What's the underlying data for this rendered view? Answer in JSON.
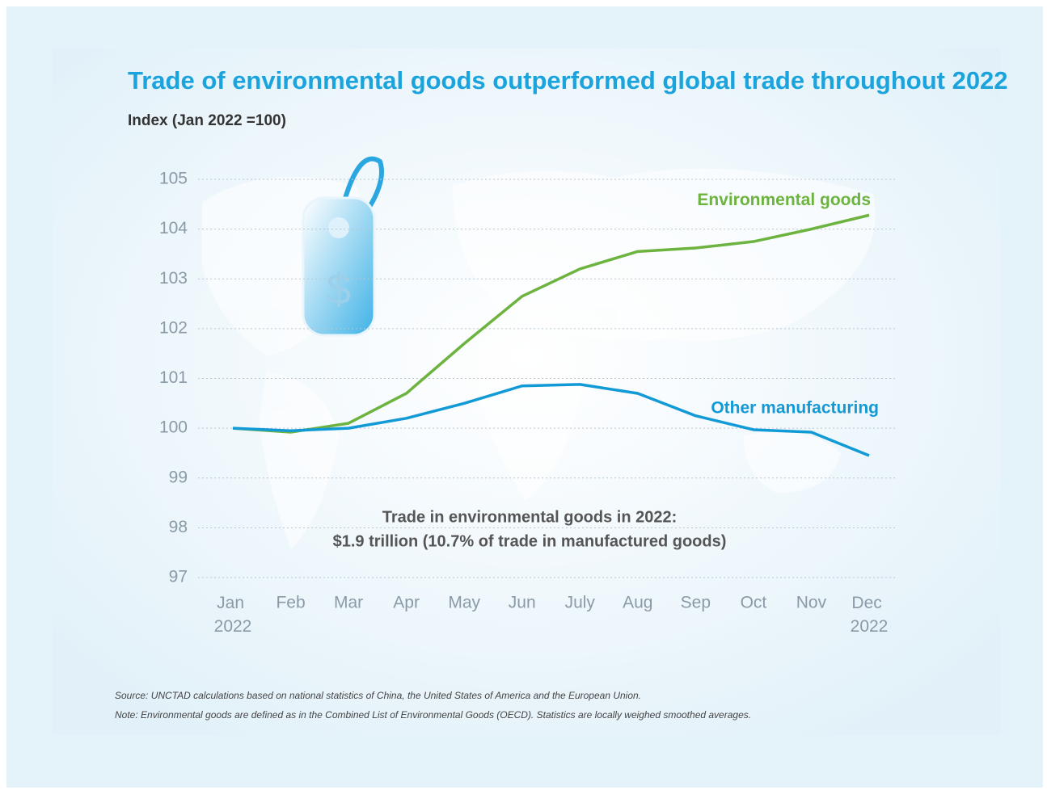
{
  "chart_data": {
    "type": "line",
    "title": "Trade of environmental goods outperformed global trade throughout 2022",
    "y_label": "Index (Jan 2022 =100)",
    "categories": [
      "Jan 2022",
      "Feb",
      "Mar",
      "Apr",
      "May",
      "Jun",
      "July",
      "Aug",
      "Sep",
      "Oct",
      "Nov",
      "Dec 2022"
    ],
    "series": [
      {
        "name": "Environmental goods",
        "color": "#6db33f",
        "values": [
          100,
          99.92,
          100.1,
          100.7,
          101.7,
          102.65,
          103.2,
          103.55,
          103.62,
          103.75,
          104,
          104.28
        ]
      },
      {
        "name": "Other manufacturing",
        "color": "#129ad6",
        "values": [
          100,
          99.95,
          100,
          100.2,
          100.5,
          100.85,
          100.88,
          100.7,
          100.25,
          99.97,
          99.92,
          99.45
        ]
      }
    ],
    "ylim": [
      97,
      105
    ],
    "yticks": [
      97,
      98,
      99,
      100,
      101,
      102,
      103,
      104,
      105
    ],
    "grid": true,
    "annotation": [
      "Trade in environmental goods in 2022:",
      "$1.9 trillion (10.7% of trade in manufactured goods)"
    ],
    "source": "Source: UNCTAD calculations based on national statistics of China, the United States of America and the European Union.",
    "note": "Note: Environmental goods are defined as in the Combined List of Environmental Goods (OECD).  Statistics are locally weighed smoothed averages."
  }
}
